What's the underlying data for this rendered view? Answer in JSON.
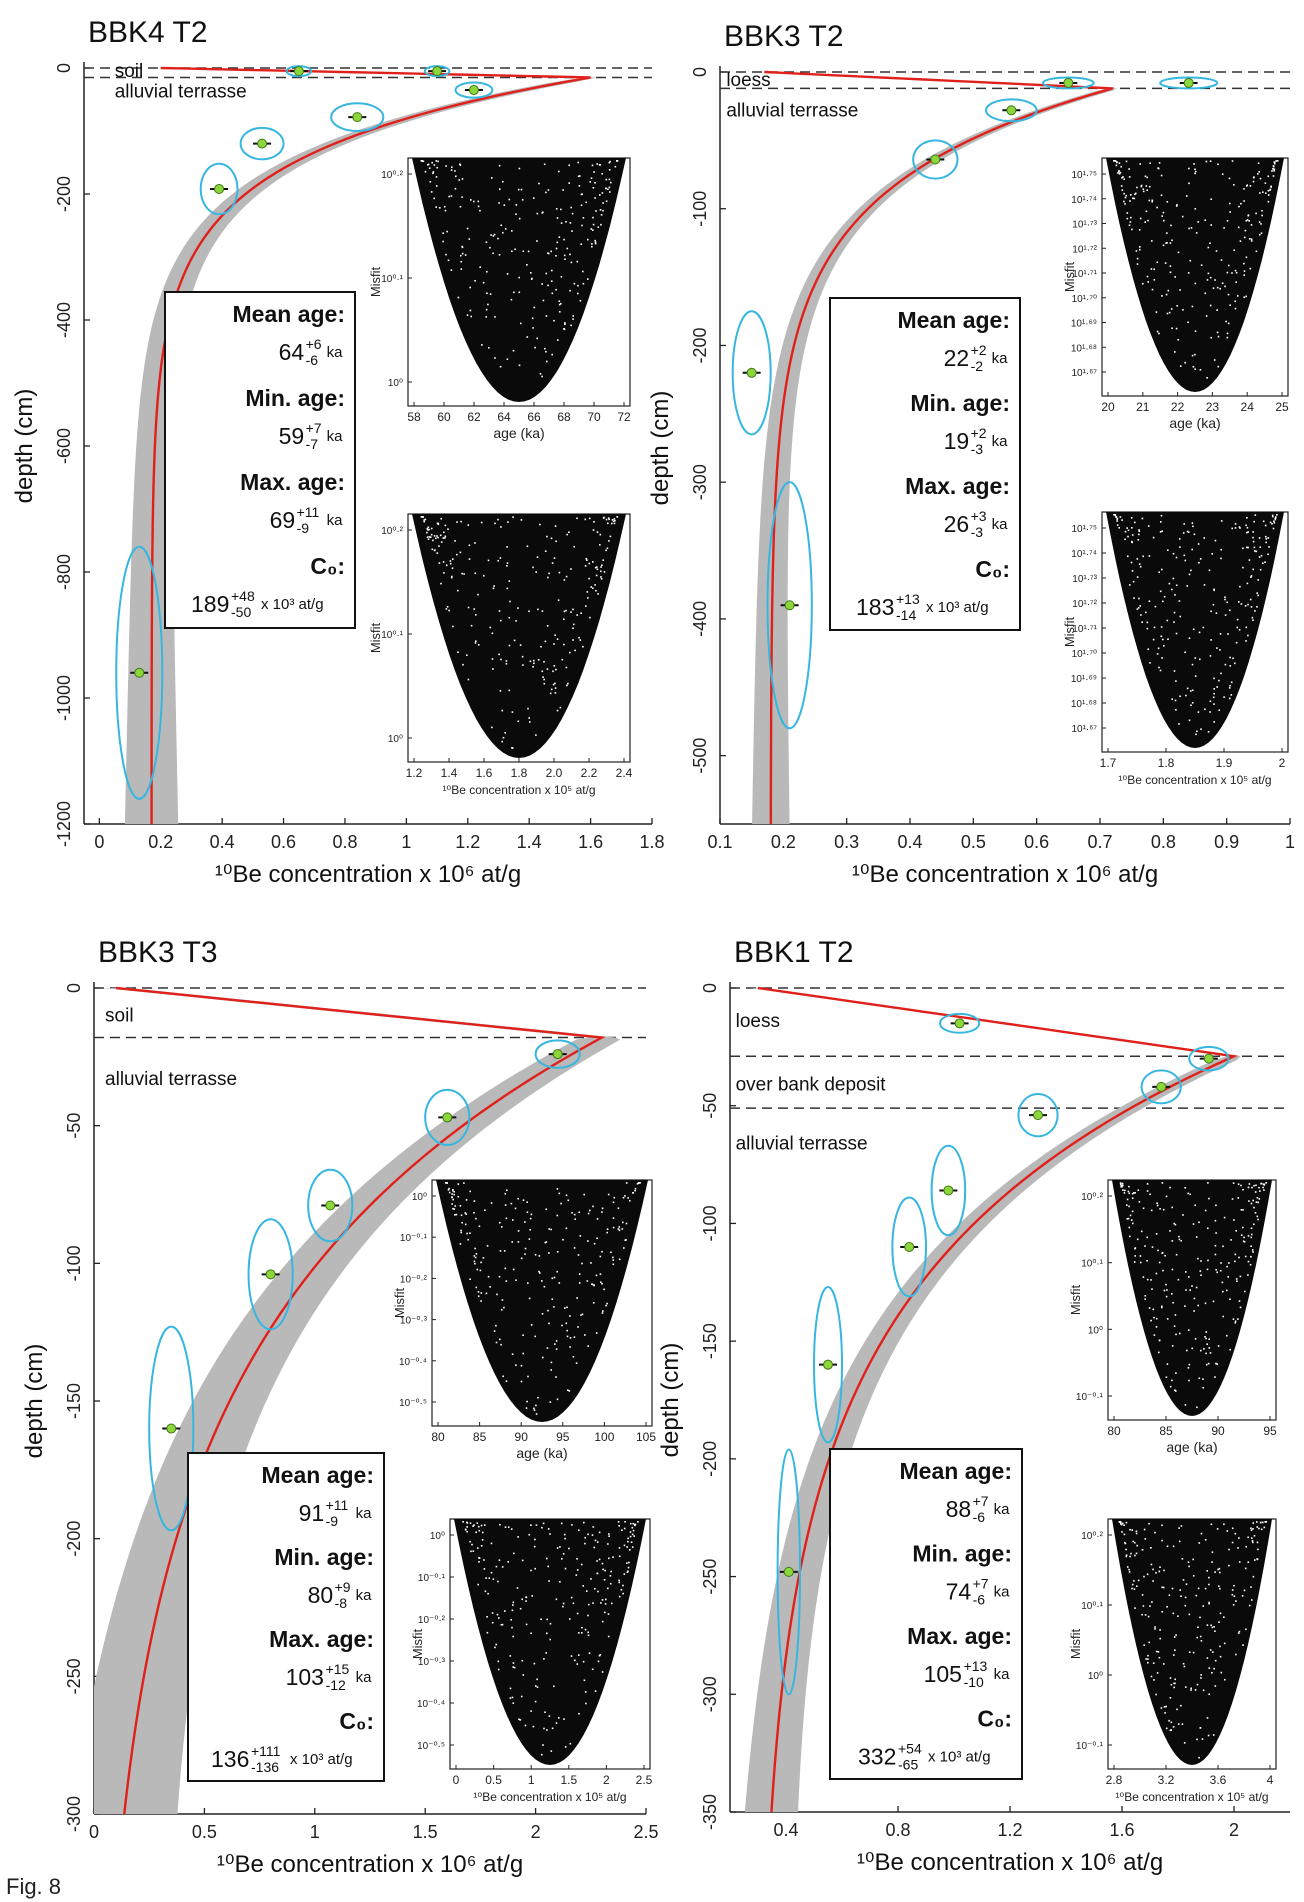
{
  "figure": {
    "caption": "Fig. 8"
  },
  "chart_data": [
    {
      "type": "scatter",
      "title": "BBK4 T2",
      "xlabel": "¹⁰Be concentration x 10⁶ at/g",
      "ylabel": "depth (cm)",
      "xlim": [
        -0.05,
        1.8
      ],
      "ylim": [
        -1200,
        0
      ],
      "xticks": [
        0,
        0.2,
        0.4,
        0.6,
        0.8,
        1.0,
        1.2,
        1.4,
        1.6,
        1.8
      ],
      "yticks": [
        0,
        -200,
        -400,
        -600,
        -800,
        -1000,
        -1200
      ],
      "layer_lines": [
        0,
        -15
      ],
      "layers": [
        {
          "label": "soil",
          "depth": -5,
          "x": 0.05
        },
        {
          "label": "alluvial terrasse",
          "depth": -37,
          "x": 0.05
        }
      ],
      "samples": [
        {
          "x": 0.65,
          "depth": -5,
          "rx": 0.04,
          "ry": 7
        },
        {
          "x": 1.1,
          "depth": -5,
          "rx": 0.04,
          "ry": 7
        },
        {
          "x": 1.22,
          "depth": -35,
          "rx": 0.06,
          "ry": 12
        },
        {
          "x": 0.84,
          "depth": -78,
          "rx": 0.085,
          "ry": 22
        },
        {
          "x": 0.53,
          "depth": -120,
          "rx": 0.07,
          "ry": 25
        },
        {
          "x": 0.39,
          "depth": -192,
          "rx": 0.06,
          "ry": 40
        },
        {
          "x": 0.13,
          "depth": -960,
          "rx": 0.075,
          "ry": 200
        }
      ],
      "model": {
        "peak_x": 1.6,
        "peak_depth": -15,
        "surface_x": 0.2,
        "floor_x": 0.17,
        "decay_cm": 120,
        "band_halfwidth": 0.035
      },
      "stats": {
        "mean_age": {
          "label": "Mean age:",
          "value": "64",
          "plus": "+6",
          "minus": "-6",
          "unit": "ka"
        },
        "min_age": {
          "label": "Min. age:",
          "value": "59",
          "plus": "+7",
          "minus": "-7",
          "unit": "ka"
        },
        "max_age": {
          "label": "Max. age:",
          "value": "69",
          "plus": "+11",
          "minus": "-9",
          "unit": "ka"
        },
        "c0": {
          "label": "C₀:",
          "value": "189",
          "plus": "+48",
          "minus": "-50",
          "unit": "x 10³ at/g"
        }
      },
      "insets": [
        {
          "ylabel": "Misfit",
          "xlabel": "age (ka)",
          "xticks": [
            "58",
            "60",
            "62",
            "64",
            "66",
            "68",
            "70",
            "72"
          ],
          "yticks": [
            "10⁰·²",
            "10⁰·¹",
            "10⁰"
          ]
        },
        {
          "ylabel": "Misfit",
          "xlabel": "¹⁰Be concentration x 10⁵ at/g",
          "xticks": [
            "1.2",
            "1.4",
            "1.6",
            "1.8",
            "2.0",
            "2.2",
            "2.4"
          ],
          "yticks": [
            "10⁰·²",
            "10⁰·¹",
            "10⁰"
          ]
        }
      ]
    },
    {
      "type": "scatter",
      "title": "BBK3 T2",
      "xlabel": "¹⁰Be concentration x 10⁶ at/g",
      "ylabel": "depth (cm)",
      "xlim": [
        0.1,
        1.0
      ],
      "ylim": [
        -550,
        0
      ],
      "xticks": [
        0.1,
        0.2,
        0.3,
        0.4,
        0.5,
        0.6,
        0.7,
        0.8,
        0.9,
        1.0
      ],
      "yticks": [
        0,
        -100,
        -200,
        -300,
        -400,
        -500
      ],
      "layer_lines": [
        0,
        -12
      ],
      "layers": [
        {
          "label": "loess",
          "depth": -6,
          "x": 0.11
        },
        {
          "label": "alluvial terrasse",
          "depth": -28,
          "x": 0.11
        }
      ],
      "samples": [
        {
          "x": 0.65,
          "depth": -8,
          "rx": 0.04,
          "ry": 4
        },
        {
          "x": 0.84,
          "depth": -8,
          "rx": 0.045,
          "ry": 4
        },
        {
          "x": 0.56,
          "depth": -28,
          "rx": 0.04,
          "ry": 8
        },
        {
          "x": 0.44,
          "depth": -64,
          "rx": 0.035,
          "ry": 14
        },
        {
          "x": 0.15,
          "depth": -220,
          "rx": 0.03,
          "ry": 45
        },
        {
          "x": 0.21,
          "depth": -390,
          "rx": 0.035,
          "ry": 90
        }
      ],
      "model": {
        "peak_x": 0.72,
        "peak_depth": -12,
        "surface_x": 0.17,
        "floor_x": 0.18,
        "decay_cm": 70,
        "band_halfwidth": 0.012
      },
      "stats": {
        "mean_age": {
          "label": "Mean age:",
          "value": "22",
          "plus": "+2",
          "minus": "-2",
          "unit": "ka"
        },
        "min_age": {
          "label": "Min. age:",
          "value": "19",
          "plus": "+2",
          "minus": "-3",
          "unit": "ka"
        },
        "max_age": {
          "label": "Max. age:",
          "value": "26",
          "plus": "+3",
          "minus": "-3",
          "unit": "ka"
        },
        "c0": {
          "label": "C₀:",
          "value": "183",
          "plus": "+13",
          "minus": "-14",
          "unit": "x 10³ at/g"
        }
      },
      "insets": [
        {
          "ylabel": "Misfit",
          "xlabel": "age (ka)",
          "xticks": [
            "20",
            "21",
            "22",
            "23",
            "24",
            "25"
          ],
          "yticks": [
            "10¹·⁷⁵",
            "10¹·⁷⁴",
            "10¹·⁷³",
            "10¹·⁷²",
            "10¹·⁷¹",
            "10¹·⁷⁰",
            "10¹·⁶⁹",
            "10¹·⁶⁸",
            "10¹·⁶⁷"
          ]
        },
        {
          "ylabel": "Misfit",
          "xlabel": "¹⁰Be concentration x 10⁵ at/g",
          "xticks": [
            "1.7",
            "1.8",
            "1.9",
            "2"
          ],
          "yticks": [
            "10¹·⁷⁵",
            "10¹·⁷⁴",
            "10¹·⁷³",
            "10¹·⁷²",
            "10¹·⁷¹",
            "10¹·⁷⁰",
            "10¹·⁶⁹",
            "10¹·⁶⁸",
            "10¹·⁶⁷"
          ]
        }
      ]
    },
    {
      "type": "scatter",
      "title": "BBK3 T3",
      "xlabel": "¹⁰Be concentration x 10⁶ at/g",
      "ylabel": "depth (cm)",
      "xlim": [
        0,
        2.5
      ],
      "ylim": [
        -300,
        0
      ],
      "xticks": [
        0,
        0.5,
        1.0,
        1.5,
        2.0,
        2.5
      ],
      "yticks": [
        0,
        -50,
        -100,
        -150,
        -200,
        -250,
        -300
      ],
      "layer_lines": [
        0,
        -18
      ],
      "layers": [
        {
          "label": "soil",
          "depth": -10,
          "x": 0.05
        },
        {
          "label": "alluvial terrasse",
          "depth": -33,
          "x": 0.05
        }
      ],
      "samples": [
        {
          "x": 2.1,
          "depth": -24,
          "rx": 0.1,
          "ry": 5
        },
        {
          "x": 1.6,
          "depth": -47,
          "rx": 0.1,
          "ry": 10
        },
        {
          "x": 1.07,
          "depth": -79,
          "rx": 0.1,
          "ry": 13
        },
        {
          "x": 0.8,
          "depth": -104,
          "rx": 0.1,
          "ry": 20
        },
        {
          "x": 0.35,
          "depth": -160,
          "rx": 0.1,
          "ry": 37
        }
      ],
      "model": {
        "peak_x": 2.3,
        "peak_depth": -18,
        "surface_x": 0.1,
        "floor_x": 0.0,
        "decay_cm": 100,
        "band_halfwidth": 0.1
      },
      "stats": {
        "mean_age": {
          "label": "Mean age:",
          "value": "91",
          "plus": "+11",
          "minus": "-9",
          "unit": "ka"
        },
        "min_age": {
          "label": "Min. age:",
          "value": "80",
          "plus": "+9",
          "minus": "-8",
          "unit": "ka"
        },
        "max_age": {
          "label": "Max. age:",
          "value": "103",
          "plus": "+15",
          "minus": "-12",
          "unit": "ka"
        },
        "c0": {
          "label": "C₀:",
          "value": "136",
          "plus": "+111",
          "minus": "-136",
          "unit": "x 10³ at/g"
        }
      },
      "insets": [
        {
          "ylabel": "Misfit",
          "xlabel": "age (ka)",
          "xticks": [
            "80",
            "85",
            "90",
            "95",
            "100",
            "105"
          ],
          "yticks": [
            "10⁰",
            "10⁻⁰·¹",
            "10⁻⁰·²",
            "10⁻⁰·³",
            "10⁻⁰·⁴",
            "10⁻⁰·⁵"
          ]
        },
        {
          "ylabel": "Misfit",
          "xlabel": "¹⁰Be concentration x 10⁵ at/g",
          "xticks": [
            "0",
            "0.5",
            "1",
            "1.5",
            "2",
            "2.5"
          ],
          "yticks": [
            "10⁰",
            "10⁻⁰·¹",
            "10⁻⁰·²",
            "10⁻⁰·³",
            "10⁻⁰·⁴",
            "10⁻⁰·⁵"
          ]
        }
      ]
    },
    {
      "type": "scatter",
      "title": "BBK1 T2",
      "xlabel": "¹⁰Be concentration x 10⁶ at/g",
      "ylabel": "depth (cm)",
      "xlim": [
        0.2,
        2.2
      ],
      "ylim": [
        -350,
        0
      ],
      "xticks": [
        0.4,
        0.8,
        1.2,
        1.6,
        2.0
      ],
      "yticks": [
        0,
        -50,
        -100,
        -150,
        -200,
        -250,
        -300,
        -350
      ],
      "layer_lines": [
        0,
        -29,
        -51
      ],
      "layers": [
        {
          "label": "loess",
          "depth": -14,
          "x": 0.22
        },
        {
          "label": "over bank deposit",
          "depth": -41,
          "x": 0.22
        },
        {
          "label": "alluvial terrasse",
          "depth": -66,
          "x": 0.22
        }
      ],
      "samples": [
        {
          "x": 1.02,
          "depth": -15,
          "rx": 0.07,
          "ry": 4
        },
        {
          "x": 1.91,
          "depth": -30,
          "rx": 0.07,
          "ry": 5
        },
        {
          "x": 1.74,
          "depth": -42,
          "rx": 0.07,
          "ry": 7
        },
        {
          "x": 1.3,
          "depth": -54,
          "rx": 0.07,
          "ry": 9
        },
        {
          "x": 0.98,
          "depth": -86,
          "rx": 0.06,
          "ry": 19
        },
        {
          "x": 0.84,
          "depth": -110,
          "rx": 0.06,
          "ry": 21
        },
        {
          "x": 0.55,
          "depth": -160,
          "rx": 0.05,
          "ry": 33
        },
        {
          "x": 0.41,
          "depth": -248,
          "rx": 0.04,
          "ry": 52
        }
      ],
      "model": {
        "peak_x": 2.0,
        "peak_depth": -29,
        "surface_x": 0.3,
        "floor_x": 0.3,
        "decay_cm": 90,
        "band_halfwidth": 0.04
      },
      "stats": {
        "mean_age": {
          "label": "Mean age:",
          "value": "88",
          "plus": "+7",
          "minus": "-6",
          "unit": "ka"
        },
        "min_age": {
          "label": "Min. age:",
          "value": "74",
          "plus": "+7",
          "minus": "-6",
          "unit": "ka"
        },
        "max_age": {
          "label": "Max. age:",
          "value": "105",
          "plus": "+13",
          "minus": "-10",
          "unit": "ka"
        },
        "c0": {
          "label": "C₀:",
          "value": "332",
          "plus": "+54",
          "minus": "-65",
          "unit": "x 10³ at/g"
        }
      },
      "insets": [
        {
          "ylabel": "Misfit",
          "xlabel": "age (ka)",
          "xticks": [
            "80",
            "85",
            "90",
            "95"
          ],
          "yticks": [
            "10⁰·²",
            "10⁰·¹",
            "10⁰",
            "10⁻⁰·¹"
          ]
        },
        {
          "ylabel": "Misfit",
          "xlabel": "¹⁰Be concentration x 10⁵ at/g",
          "xticks": [
            "2.8",
            "3.2",
            "3.6",
            "4"
          ],
          "yticks": [
            "10⁰·²",
            "10⁰·¹",
            "10⁰",
            "10⁻⁰·¹"
          ]
        }
      ]
    }
  ]
}
